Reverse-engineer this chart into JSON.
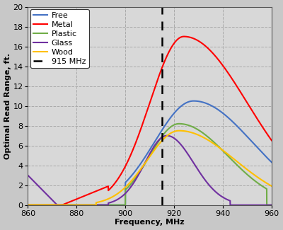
{
  "xlabel": "Frequency, MHz",
  "ylabel": "Optimal Read Range, ft.",
  "xlim": [
    860,
    960
  ],
  "ylim": [
    0,
    20
  ],
  "yticks": [
    0,
    2,
    4,
    6,
    8,
    10,
    12,
    14,
    16,
    18,
    20
  ],
  "xticks": [
    860,
    880,
    900,
    920,
    940,
    960
  ],
  "dashed_line_x": 915,
  "colors": {
    "Free": "#4472C4",
    "Metal": "#FF0000",
    "Plastic": "#70AD47",
    "Glass": "#7030A0",
    "Wood": "#FFC000"
  },
  "fig_bg": "#c8c8c8",
  "plot_bg": "#d8d8d8",
  "legend_fontsize": 8,
  "axis_label_fontsize": 8,
  "tick_fontsize": 8
}
